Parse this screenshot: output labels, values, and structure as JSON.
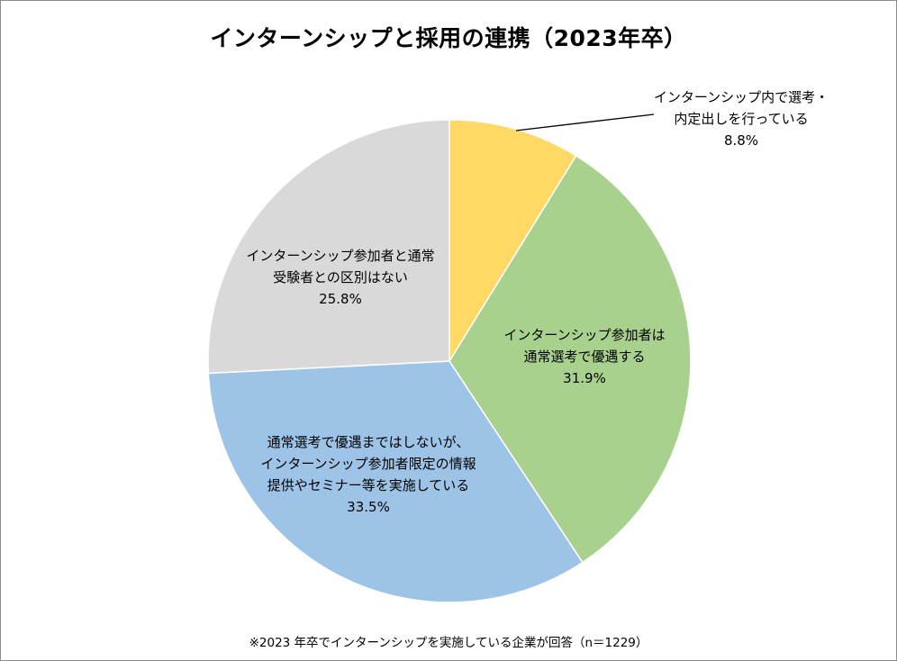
{
  "chart_data": {
    "type": "pie",
    "title": "インターンシップと採用の連携（2023年卒）",
    "start": "top, clockwise",
    "slices": [
      {
        "label": "インターンシップ内で選考・\n内定出しを行っている",
        "value": 8.8,
        "value_text": "8.8%",
        "color": "#FFD966"
      },
      {
        "label": "インターンシップ参加者は\n通常選考で優遇する",
        "value": 31.9,
        "value_text": "31.9%",
        "color": "#A9D18E"
      },
      {
        "label": "通常選考で優遇まではしないが、\nインターンシップ参加者限定の情報\n提供やセミナー等を実施している",
        "value": 33.5,
        "value_text": "33.5%",
        "color": "#9DC3E6"
      },
      {
        "label": "インターンシップ参加者と通常\n受験者との区別はない",
        "value": 25.8,
        "value_text": "25.8%",
        "color": "#D9D9D9"
      }
    ],
    "note": "※2023 年卒でインターンシップを実施している企業が回答（n＝1229）"
  }
}
